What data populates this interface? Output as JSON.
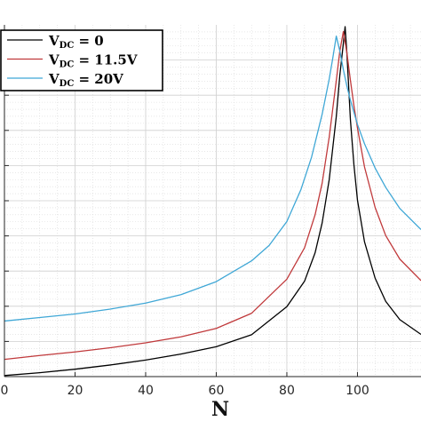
{
  "chart_data": {
    "type": "line",
    "title": "",
    "xlabel": "N",
    "ylabel": "",
    "xlim": [
      0,
      118
    ],
    "ylim": [
      0,
      1
    ],
    "grid": true,
    "minor_grid": true,
    "legend_position": "top-left",
    "x_ticks": [
      0,
      20,
      40,
      60,
      80,
      100
    ],
    "x_tick_labels": [
      "0",
      "20",
      "40",
      "60",
      "80",
      "100"
    ],
    "series": [
      {
        "name_main": "V",
        "name_sub": "DC",
        "name_rest": " = 0",
        "color": "#000000",
        "x": [
          0,
          10,
          20,
          30,
          40,
          50,
          60,
          70,
          80,
          85,
          88,
          90,
          92,
          94,
          95,
          96,
          96.5,
          97,
          98,
          99,
          100,
          102,
          105,
          108,
          112,
          118
        ],
        "y": [
          0.003,
          0.011,
          0.021,
          0.033,
          0.047,
          0.064,
          0.085,
          0.119,
          0.199,
          0.271,
          0.352,
          0.437,
          0.56,
          0.739,
          0.856,
          0.947,
          0.995,
          0.921,
          0.731,
          0.602,
          0.502,
          0.383,
          0.28,
          0.214,
          0.162,
          0.12
        ]
      },
      {
        "name_main": "V",
        "name_sub": "DC",
        "name_rest": " = 11.5V",
        "color": "#c0393b",
        "x": [
          0,
          10,
          20,
          30,
          40,
          50,
          60,
          70,
          80,
          85,
          88,
          90,
          92,
          94,
          95,
          96,
          97,
          98,
          99,
          100,
          102,
          105,
          108,
          112,
          118
        ],
        "y": [
          0.049,
          0.06,
          0.07,
          0.082,
          0.096,
          0.113,
          0.137,
          0.18,
          0.277,
          0.366,
          0.46,
          0.55,
          0.681,
          0.841,
          0.925,
          0.981,
          0.921,
          0.843,
          0.77,
          0.707,
          0.596,
          0.481,
          0.401,
          0.334,
          0.273
        ]
      },
      {
        "name_main": "V",
        "name_sub": "DC",
        "name_rest": " = 20V",
        "color": "#3fa7d6",
        "x": [
          0,
          10,
          20,
          30,
          40,
          50,
          60,
          70,
          75,
          80,
          84,
          87,
          90,
          92,
          93,
          94,
          95,
          96,
          97,
          98,
          100,
          102,
          105,
          108,
          112,
          118
        ],
        "y": [
          0.158,
          0.168,
          0.178,
          0.192,
          0.209,
          0.233,
          0.27,
          0.329,
          0.373,
          0.441,
          0.532,
          0.624,
          0.746,
          0.846,
          0.905,
          0.968,
          0.926,
          0.873,
          0.826,
          0.786,
          0.717,
          0.662,
          0.593,
          0.538,
          0.478,
          0.418
        ]
      }
    ]
  }
}
